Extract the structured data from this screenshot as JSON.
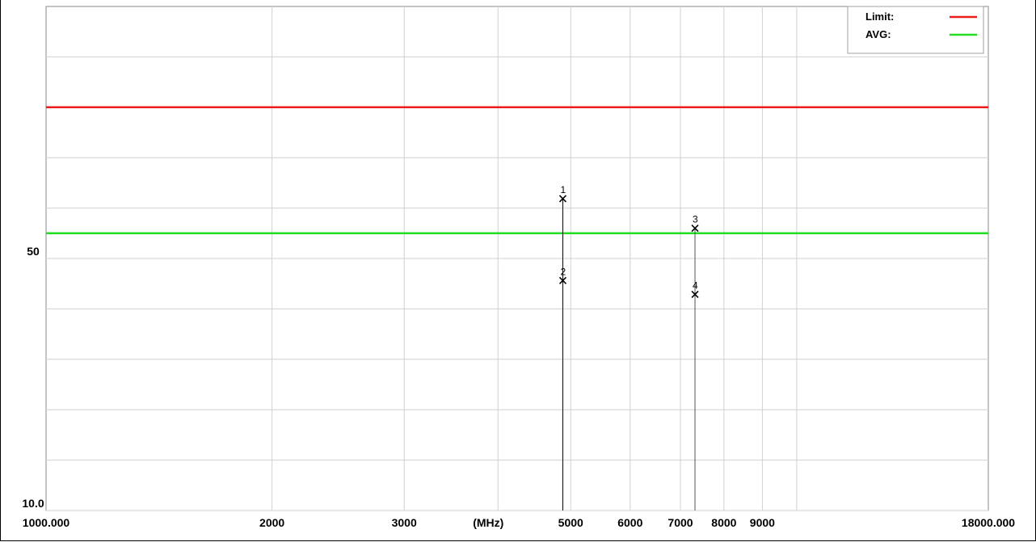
{
  "chart_data": {
    "type": "line",
    "xscale": "log",
    "xlim": [
      1000,
      18000
    ],
    "ylim": [
      10,
      90
    ],
    "grid": true,
    "x_unit_label": "(MHz)",
    "x_tick_labels": [
      {
        "value": 1000,
        "label": "1000.000"
      },
      {
        "value": 2000,
        "label": "2000"
      },
      {
        "value": 3000,
        "label": "3000"
      },
      {
        "value": 5000,
        "label": "5000"
      },
      {
        "value": 6000,
        "label": "6000"
      },
      {
        "value": 7000,
        "label": "7000"
      },
      {
        "value": 8000,
        "label": "8000"
      },
      {
        "value": 9000,
        "label": "9000"
      },
      {
        "value": 18000,
        "label": "18000.000"
      }
    ],
    "x_grid": [
      2000,
      3000,
      4000,
      5000,
      6000,
      7000,
      8000,
      9000,
      10000
    ],
    "y_tick_labels": [
      {
        "value": 10,
        "label": "10.0"
      },
      {
        "value": 50,
        "label": "50"
      }
    ],
    "y_grid": [
      10,
      18,
      26,
      34,
      42,
      50,
      58,
      66,
      74,
      82
    ],
    "legend_position": "top-right",
    "series": [
      {
        "name": "Limit:",
        "color": "#ee1c1c",
        "y": 74
      },
      {
        "name": "AVG:",
        "color": "#22dd22",
        "y": 54
      }
    ],
    "markers": [
      {
        "label": "1",
        "x": 4880,
        "y": 59.5
      },
      {
        "label": "2",
        "x": 4880,
        "y": 46.5
      },
      {
        "label": "3",
        "x": 7320,
        "y": 54.8
      },
      {
        "label": "4",
        "x": 7320,
        "y": 44.3
      }
    ]
  }
}
